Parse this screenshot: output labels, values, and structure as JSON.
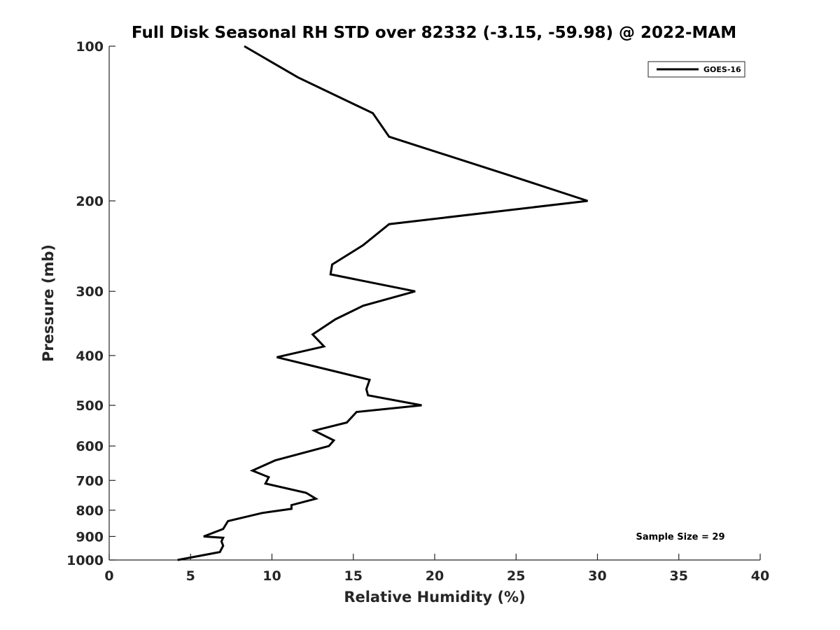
{
  "chart_data": {
    "type": "line",
    "title": "Full Disk Seasonal RH STD over 82332 (-3.15, -59.98) @ 2022-MAM",
    "xlabel": "Relative Humidity (%)",
    "ylabel": "Pressure (mb)",
    "xlim": [
      0,
      40
    ],
    "ylim": [
      100,
      1000
    ],
    "y_scale": "log",
    "y_reversed": true,
    "x_ticks": [
      0,
      5,
      10,
      15,
      20,
      25,
      30,
      35,
      40
    ],
    "y_ticks": [
      100,
      200,
      300,
      400,
      500,
      600,
      700,
      800,
      900,
      1000
    ],
    "grid": false,
    "legend": {
      "placement": "top-right",
      "entries": [
        "GOES-16"
      ]
    },
    "annotation": "Sample Size = 29",
    "series": [
      {
        "name": "GOES-16",
        "color": "#000000",
        "x": [
          8.3,
          11.6,
          16.2,
          17.2,
          24.5,
          29.4,
          17.2,
          15.6,
          13.7,
          13.6,
          18.8,
          15.6,
          13.9,
          12.5,
          13.2,
          10.3,
          13.7,
          16.0,
          15.8,
          15.9,
          19.2,
          15.2,
          14.6,
          12.6,
          13.8,
          13.5,
          10.2,
          8.8,
          9.8,
          9.6,
          12.1,
          12.7,
          11.2,
          11.2,
          9.4,
          7.3,
          7.0,
          5.8,
          7.0,
          6.9,
          7.0,
          6.8,
          4.2
        ],
        "y": [
          100,
          115,
          135,
          150,
          178,
          200,
          222,
          244,
          266,
          278,
          300,
          320,
          340,
          364,
          384,
          403,
          428,
          446,
          465,
          478,
          500,
          515,
          540,
          560,
          585,
          600,
          640,
          670,
          690,
          710,
          740,
          760,
          782,
          795,
          810,
          840,
          870,
          900,
          905,
          920,
          938,
          965,
          1000
        ]
      }
    ]
  }
}
